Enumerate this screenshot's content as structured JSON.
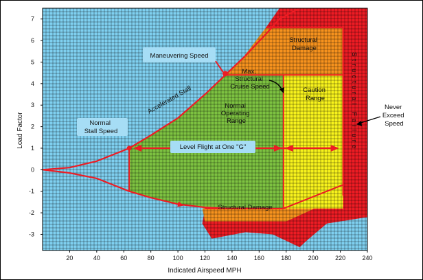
{
  "chart_data": {
    "type": "area",
    "title": "",
    "xlabel": "Indicated Airspeed MPH",
    "ylabel": "Load Factor",
    "xlim": [
      0,
      240
    ],
    "ylim": [
      -3.75,
      7.5
    ],
    "x_ticks": [
      "20",
      "40",
      "60",
      "80",
      "100",
      "120",
      "140",
      "160",
      "180",
      "200",
      "220",
      "240"
    ],
    "y_ticks": [
      "7",
      "6",
      "5",
      "4",
      "3",
      "2",
      "1",
      "0",
      "-1",
      "-2",
      "-3"
    ],
    "key_speeds": {
      "normal_stall_speed": 64,
      "maneuvering_speed": 135,
      "max_structural_cruise_speed": 178,
      "never_exceed_speed": 222
    },
    "load_limits": {
      "positive_limit": 4.4,
      "negative_limit": -1.8,
      "structural_damage_upper": 6.6
    },
    "series": [
      {
        "name": "Positive stall boundary (Accelerated Stall)",
        "x": [
          0,
          20,
          40,
          64,
          80,
          100,
          120,
          135,
          150,
          165,
          175,
          190
        ],
        "y": [
          0,
          0.1,
          0.4,
          1.0,
          1.6,
          2.4,
          3.5,
          4.4,
          5.3,
          6.3,
          7.0,
          7.5
        ]
      },
      {
        "name": "Negative stall boundary",
        "x": [
          0,
          20,
          40,
          64,
          80,
          100,
          120,
          135,
          150,
          165
        ],
        "y": [
          0,
          -0.15,
          -0.4,
          -1.0,
          -1.3,
          -1.6,
          -1.75,
          -1.8,
          -1.8,
          -1.8
        ]
      },
      {
        "name": "Level Flight at One \"G\"",
        "x": [
          64,
          222
        ],
        "y": [
          1,
          1
        ]
      }
    ],
    "regions": [
      {
        "name": "Normal Operating Range",
        "x_range": [
          64,
          178
        ],
        "y_range": [
          -1.8,
          4.4
        ],
        "color": "#7dc241"
      },
      {
        "name": "Caution Range",
        "x_range": [
          178,
          222
        ],
        "y_range": [
          -1.8,
          4.4
        ],
        "color": "#f7f21c"
      },
      {
        "name": "Structural Damage",
        "color": "#f6921e"
      },
      {
        "name": "Structural Failure",
        "color": "#ed1c24"
      }
    ],
    "annotations": {
      "maneuvering_speed": "Maneuvering Speed",
      "max_structural_cruise": "Max. Structural Cruise Speed",
      "normal_operating": "Normal Operating Range",
      "caution_range": "Caution Range",
      "structural_damage_top": "Structural Damage",
      "structural_damage_bottom": "Structural Damage",
      "structural_failure": "Structural Failure",
      "never_exceed": "Never Exceed Speed",
      "accelerated_stall": "Accelerated Stall",
      "normal_stall_speed": "Normal Stall Speed",
      "level_flight": "Level Flight at One \"G\""
    },
    "colors": {
      "background": "#7fd0f0",
      "normal": "#7dc241",
      "caution": "#f7f21c",
      "damage": "#f6921e",
      "failure": "#ed1c24",
      "curve": "#ed1c24",
      "grid": "#000000",
      "label_box": "#a6ddf5"
    }
  }
}
